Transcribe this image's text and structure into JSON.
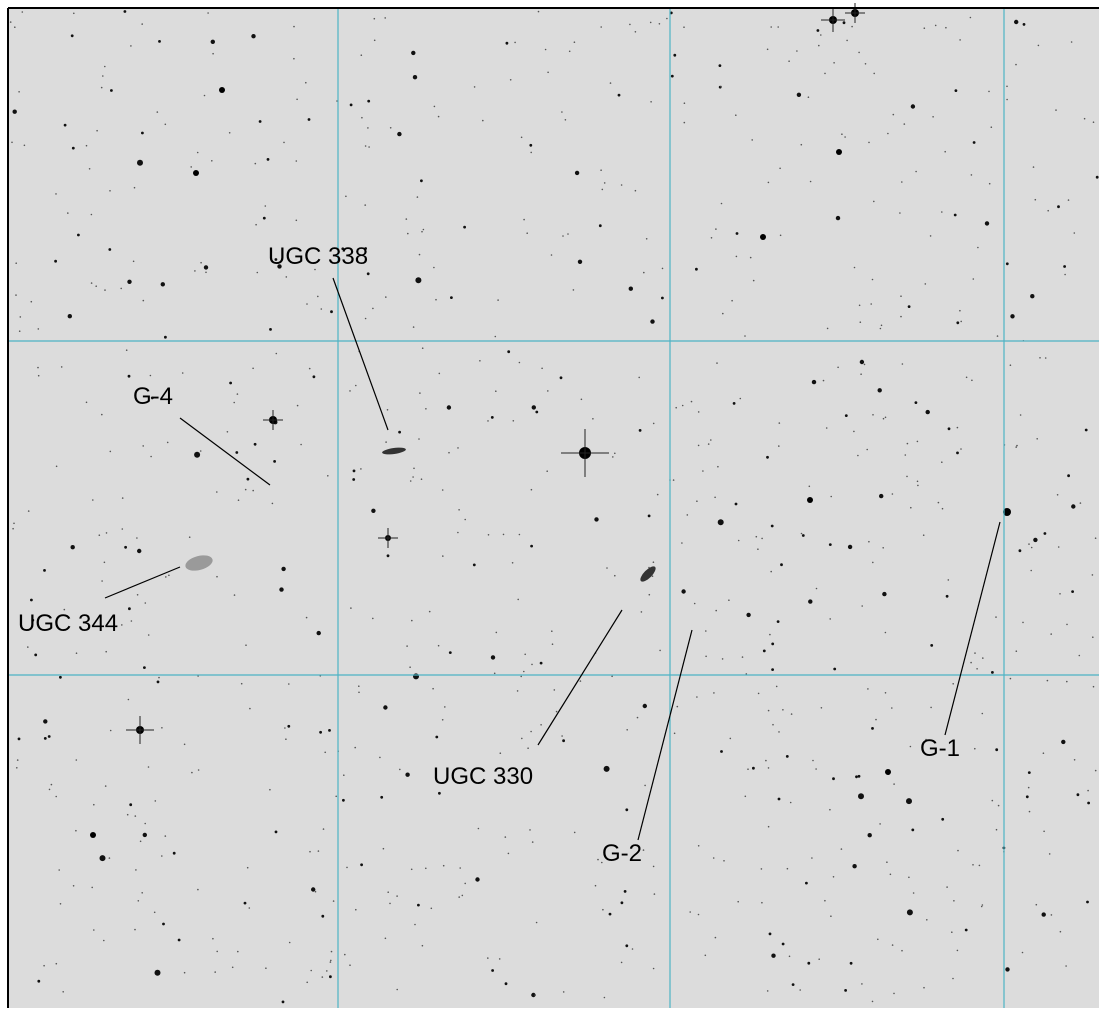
{
  "labels": [
    "UGC 338",
    "G-4",
    "UGC 344",
    "UGC 330",
    "G-2",
    "G-1"
  ]
}
